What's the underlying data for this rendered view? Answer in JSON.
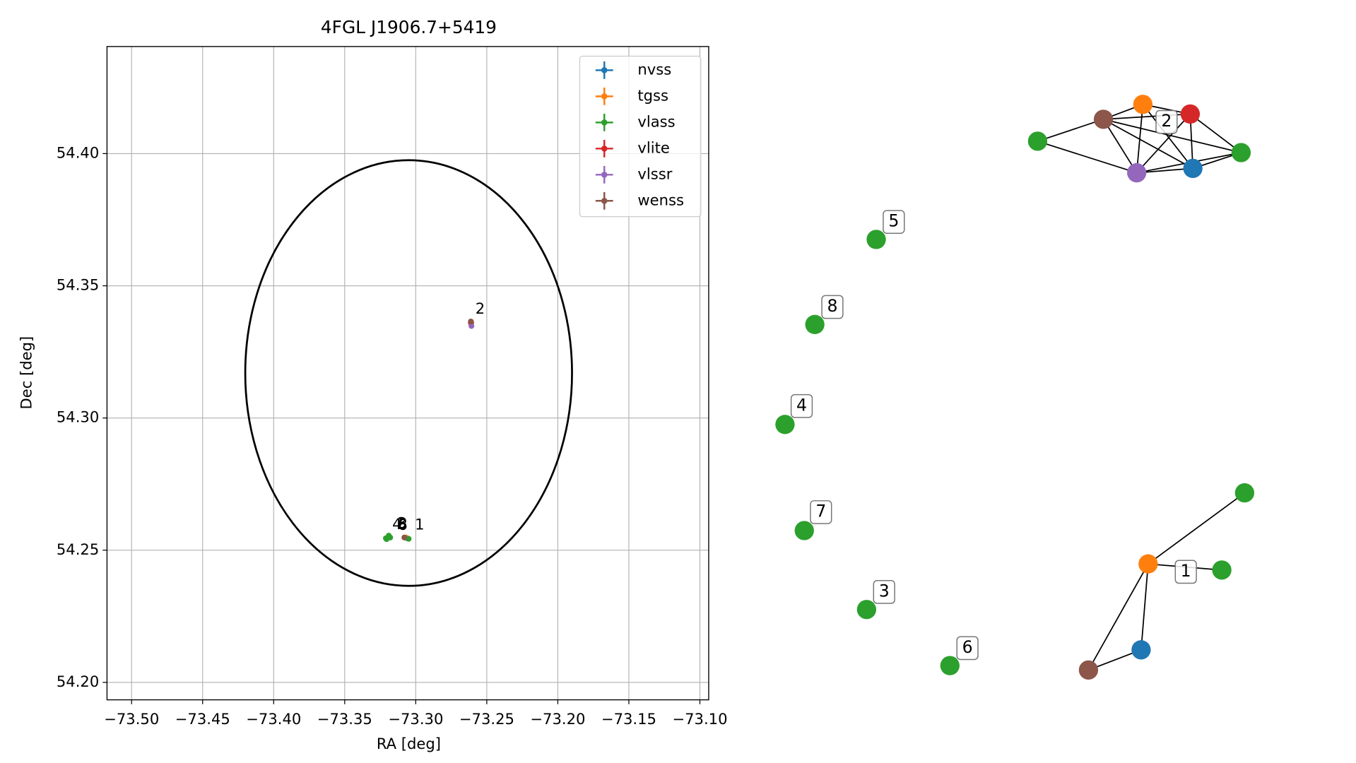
{
  "chart_data": {
    "type": "scatter",
    "title": "4FGL J1906.7+5419",
    "x_label": "RA [deg]",
    "y_label": "Dec [deg]",
    "xlim": [
      -73.5173,
      -73.0938
    ],
    "ylim": [
      54.1934,
      54.4405
    ],
    "grid": true,
    "legend": "upper right",
    "xticks": [
      {
        "value": -73.5,
        "label": "−73.50"
      },
      {
        "value": -73.45,
        "label": "−73.45"
      },
      {
        "value": -73.4,
        "label": "−73.40"
      },
      {
        "value": -73.35,
        "label": "−73.35"
      },
      {
        "value": -73.3,
        "label": "−73.30"
      },
      {
        "value": -73.25,
        "label": "−73.25"
      },
      {
        "value": -73.2,
        "label": "−73.20"
      },
      {
        "value": -73.15,
        "label": "−73.15"
      },
      {
        "value": -73.1,
        "label": "−73.10"
      }
    ],
    "yticks": [
      {
        "value": 54.2,
        "label": "54.20"
      },
      {
        "value": 54.25,
        "label": "54.25"
      },
      {
        "value": 54.3,
        "label": "54.30"
      },
      {
        "value": 54.35,
        "label": "54.35"
      },
      {
        "value": 54.4,
        "label": "54.40"
      }
    ],
    "series": [
      {
        "name": "nvss",
        "color": "#1f77b4",
        "x": [
          -73.261,
          -73.306
        ],
        "values": [
          54.336,
          54.2545
        ]
      },
      {
        "name": "tgss",
        "color": "#ff7f0e",
        "x": [
          -73.261,
          -73.307
        ],
        "values": [
          54.3362,
          54.2548
        ]
      },
      {
        "name": "vlass",
        "color": "#2ca02c",
        "x": [
          -73.261,
          -73.305,
          -73.321,
          -73.319,
          -73.318,
          -73.3205
        ],
        "values": [
          54.3358,
          54.2543,
          54.2545,
          54.2555,
          54.2548,
          54.2542
        ]
      },
      {
        "name": "vlite",
        "color": "#d62728",
        "x": [
          -73.2612
        ],
        "values": [
          54.336
        ]
      },
      {
        "name": "vlssr",
        "color": "#9467bd",
        "x": [
          -73.2608
        ],
        "values": [
          54.3348
        ]
      },
      {
        "name": "wenss",
        "color": "#8c564b",
        "x": [
          -73.2612,
          -73.308
        ],
        "values": [
          54.3365,
          54.2548
        ]
      }
    ],
    "ellipse": {
      "x": -73.305,
      "y": 54.317,
      "width": 0.23,
      "height": 0.161
    },
    "annotations": [
      {
        "text": "2",
        "x": -73.258,
        "y": 54.341
      },
      {
        "text": "1",
        "x": -73.3006,
        "y": 54.2594
      },
      {
        "text": "4",
        "x": -73.3165,
        "y": 54.2596
      },
      {
        "text": "3",
        "x": -73.313,
        "y": 54.2599
      },
      {
        "text": "5",
        "x": -73.3125,
        "y": 54.2596
      },
      {
        "text": "8",
        "x": -73.3125,
        "y": 54.2594
      },
      {
        "text": "6",
        "x": -73.3125,
        "y": 54.2593
      }
    ]
  },
  "graph": {
    "groups": [
      {
        "label": "2",
        "nodes": [
          "#2ca02c",
          "#8c564b",
          "#ff7f0e",
          "#d62728",
          "#9467bd",
          "#1f77b4",
          "#2ca02c"
        ]
      },
      {
        "label": "5",
        "nodes": [
          "#2ca02c"
        ]
      },
      {
        "label": "8",
        "nodes": [
          "#2ca02c"
        ]
      },
      {
        "label": "4",
        "nodes": [
          "#2ca02c"
        ]
      },
      {
        "label": "7",
        "nodes": [
          "#2ca02c"
        ]
      },
      {
        "label": "3",
        "nodes": [
          "#2ca02c"
        ]
      },
      {
        "label": "6",
        "nodes": [
          "#2ca02c"
        ]
      },
      {
        "label": "1",
        "nodes": [
          "#2ca02c",
          "#ff7f0e",
          "#2ca02c",
          "#1f77b4",
          "#8c564b"
        ]
      }
    ]
  }
}
